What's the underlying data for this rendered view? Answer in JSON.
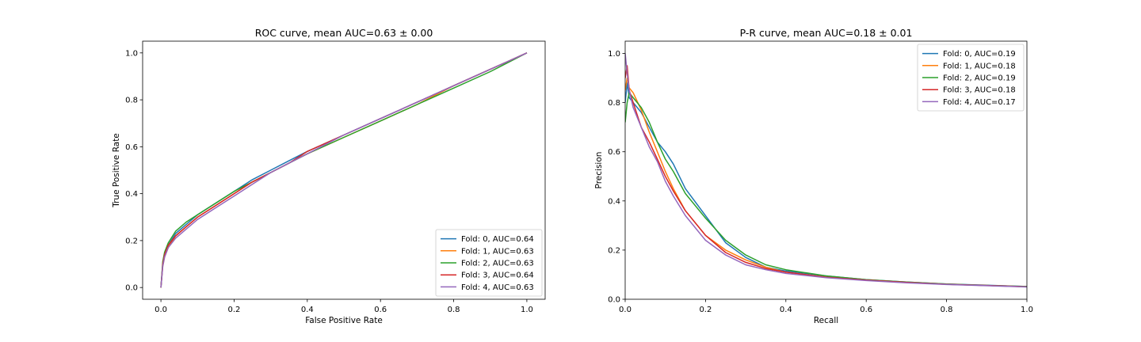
{
  "chart_data": [
    {
      "type": "line",
      "title": "ROC curve, mean AUC=0.63 ± 0.00",
      "xlabel": "False Positive Rate",
      "ylabel": "True Positive Rate",
      "xlim": [
        -0.05,
        1.05
      ],
      "ylim": [
        -0.05,
        1.05
      ],
      "xticks": [
        0.0,
        0.2,
        0.4,
        0.6,
        0.8,
        1.0
      ],
      "yticks": [
        0.0,
        0.2,
        0.4,
        0.6,
        0.8,
        1.0
      ],
      "tick_labels_x": [
        "0.0",
        "0.2",
        "0.4",
        "0.6",
        "0.8",
        "1.0"
      ],
      "tick_labels_y": [
        "0.0",
        "0.2",
        "0.4",
        "0.6",
        "0.8",
        "1.0"
      ],
      "grid": false,
      "legend_position": "lower-right",
      "series": [
        {
          "name": "Fold: 0, AUC=0.64",
          "color": "#1f77b4",
          "x": [
            0,
            0.005,
            0.01,
            0.02,
            0.04,
            0.07,
            0.1,
            0.15,
            0.2,
            0.25,
            0.3,
            0.35,
            0.4,
            0.5,
            0.6,
            0.7,
            0.8,
            0.9,
            1.0
          ],
          "y": [
            0,
            0.1,
            0.14,
            0.18,
            0.23,
            0.27,
            0.31,
            0.36,
            0.41,
            0.46,
            0.5,
            0.54,
            0.58,
            0.65,
            0.72,
            0.79,
            0.86,
            0.93,
            1.0
          ]
        },
        {
          "name": "Fold: 1, AUC=0.63",
          "color": "#ff7f0e",
          "x": [
            0,
            0.005,
            0.01,
            0.02,
            0.04,
            0.07,
            0.1,
            0.15,
            0.2,
            0.25,
            0.3,
            0.35,
            0.4,
            0.5,
            0.6,
            0.7,
            0.8,
            0.9,
            1.0
          ],
          "y": [
            0,
            0.09,
            0.13,
            0.17,
            0.22,
            0.26,
            0.3,
            0.35,
            0.4,
            0.45,
            0.49,
            0.53,
            0.57,
            0.64,
            0.71,
            0.78,
            0.86,
            0.93,
            1.0
          ]
        },
        {
          "name": "Fold: 2, AUC=0.63",
          "color": "#2ca02c",
          "x": [
            0,
            0.005,
            0.01,
            0.02,
            0.04,
            0.07,
            0.1,
            0.15,
            0.2,
            0.25,
            0.3,
            0.35,
            0.4,
            0.5,
            0.6,
            0.7,
            0.8,
            0.9,
            1.0
          ],
          "y": [
            0,
            0.11,
            0.15,
            0.19,
            0.24,
            0.28,
            0.31,
            0.36,
            0.41,
            0.45,
            0.49,
            0.53,
            0.57,
            0.64,
            0.71,
            0.78,
            0.85,
            0.92,
            1.0
          ]
        },
        {
          "name": "Fold: 3, AUC=0.64",
          "color": "#d62728",
          "x": [
            0,
            0.005,
            0.01,
            0.02,
            0.04,
            0.07,
            0.1,
            0.15,
            0.2,
            0.25,
            0.3,
            0.35,
            0.4,
            0.5,
            0.6,
            0.7,
            0.8,
            0.9,
            1.0
          ],
          "y": [
            0,
            0.1,
            0.14,
            0.18,
            0.22,
            0.26,
            0.3,
            0.35,
            0.4,
            0.45,
            0.49,
            0.53,
            0.58,
            0.65,
            0.72,
            0.79,
            0.86,
            0.93,
            1.0
          ]
        },
        {
          "name": "Fold: 4, AUC=0.63",
          "color": "#9467bd",
          "x": [
            0,
            0.005,
            0.01,
            0.02,
            0.04,
            0.07,
            0.1,
            0.15,
            0.2,
            0.25,
            0.3,
            0.35,
            0.4,
            0.5,
            0.6,
            0.7,
            0.8,
            0.9,
            1.0
          ],
          "y": [
            0,
            0.09,
            0.13,
            0.17,
            0.21,
            0.25,
            0.29,
            0.34,
            0.39,
            0.44,
            0.49,
            0.53,
            0.57,
            0.65,
            0.72,
            0.79,
            0.86,
            0.93,
            1.0
          ]
        }
      ]
    },
    {
      "type": "line",
      "title": "P-R curve, mean AUC=0.18 ± 0.01",
      "xlabel": "Recall",
      "ylabel": "Precision",
      "xlim": [
        0.0,
        1.0
      ],
      "ylim": [
        0.0,
        1.05
      ],
      "xticks": [
        0.0,
        0.2,
        0.4,
        0.6,
        0.8,
        1.0
      ],
      "yticks": [
        0.0,
        0.2,
        0.4,
        0.6,
        0.8,
        1.0
      ],
      "tick_labels_x": [
        "0.0",
        "0.2",
        "0.4",
        "0.6",
        "0.8",
        "1.0"
      ],
      "tick_labels_y": [
        "0.0",
        "0.2",
        "0.4",
        "0.6",
        "0.8",
        "1.0"
      ],
      "grid": false,
      "legend_position": "upper-right",
      "series": [
        {
          "name": "Fold: 0, AUC=0.19",
          "color": "#1f77b4",
          "x": [
            0.0,
            0.005,
            0.01,
            0.02,
            0.04,
            0.06,
            0.08,
            0.1,
            0.12,
            0.15,
            0.2,
            0.25,
            0.3,
            0.35,
            0.4,
            0.5,
            0.6,
            0.7,
            0.8,
            0.9,
            1.0
          ],
          "y": [
            0.8,
            0.88,
            0.82,
            0.8,
            0.76,
            0.7,
            0.64,
            0.6,
            0.55,
            0.45,
            0.34,
            0.23,
            0.17,
            0.13,
            0.115,
            0.095,
            0.08,
            0.07,
            0.062,
            0.057,
            0.052
          ]
        },
        {
          "name": "Fold: 1, AUC=0.18",
          "color": "#ff7f0e",
          "x": [
            0.0,
            0.005,
            0.01,
            0.02,
            0.04,
            0.06,
            0.08,
            0.1,
            0.12,
            0.15,
            0.2,
            0.25,
            0.3,
            0.35,
            0.4,
            0.5,
            0.6,
            0.7,
            0.8,
            0.9,
            1.0
          ],
          "y": [
            0.85,
            0.9,
            0.86,
            0.84,
            0.77,
            0.68,
            0.6,
            0.52,
            0.45,
            0.36,
            0.26,
            0.2,
            0.16,
            0.13,
            0.11,
            0.09,
            0.078,
            0.069,
            0.061,
            0.056,
            0.051
          ]
        },
        {
          "name": "Fold: 2, AUC=0.19",
          "color": "#2ca02c",
          "x": [
            0.0,
            0.005,
            0.01,
            0.02,
            0.04,
            0.06,
            0.08,
            0.1,
            0.12,
            0.15,
            0.2,
            0.25,
            0.3,
            0.35,
            0.4,
            0.5,
            0.6,
            0.7,
            0.8,
            0.9,
            1.0
          ],
          "y": [
            0.72,
            0.8,
            0.84,
            0.82,
            0.78,
            0.72,
            0.64,
            0.57,
            0.52,
            0.43,
            0.33,
            0.24,
            0.18,
            0.14,
            0.12,
            0.095,
            0.08,
            0.07,
            0.062,
            0.056,
            0.052
          ]
        },
        {
          "name": "Fold: 3, AUC=0.18",
          "color": "#d62728",
          "x": [
            0.0,
            0.005,
            0.01,
            0.02,
            0.04,
            0.06,
            0.08,
            0.1,
            0.12,
            0.15,
            0.2,
            0.25,
            0.3,
            0.35,
            0.4,
            0.5,
            0.6,
            0.7,
            0.8,
            0.9,
            1.0
          ],
          "y": [
            0.9,
            0.95,
            0.85,
            0.8,
            0.7,
            0.64,
            0.57,
            0.5,
            0.44,
            0.36,
            0.26,
            0.19,
            0.15,
            0.125,
            0.11,
            0.09,
            0.078,
            0.069,
            0.061,
            0.056,
            0.051
          ]
        },
        {
          "name": "Fold: 4, AUC=0.17",
          "color": "#9467bd",
          "x": [
            0.0,
            0.005,
            0.01,
            0.02,
            0.04,
            0.06,
            0.08,
            0.1,
            0.12,
            0.15,
            0.2,
            0.25,
            0.3,
            0.35,
            0.4,
            0.5,
            0.6,
            0.7,
            0.8,
            0.9,
            1.0
          ],
          "y": [
            1.0,
            0.92,
            0.85,
            0.78,
            0.7,
            0.62,
            0.56,
            0.48,
            0.42,
            0.34,
            0.24,
            0.18,
            0.14,
            0.12,
            0.105,
            0.088,
            0.076,
            0.067,
            0.06,
            0.055,
            0.05
          ]
        }
      ]
    }
  ]
}
